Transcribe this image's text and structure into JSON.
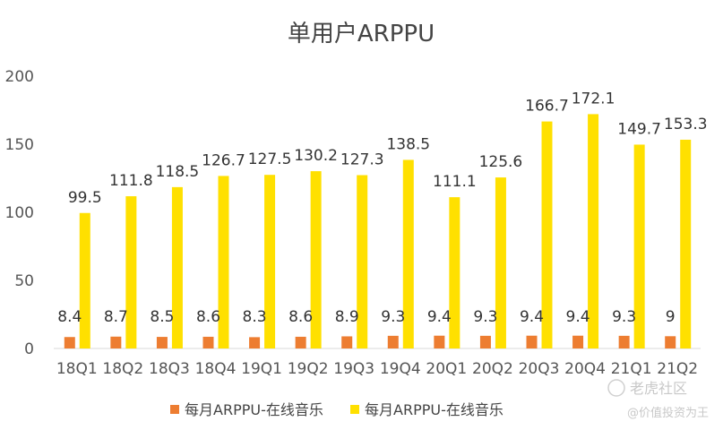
{
  "chart_data": {
    "type": "bar",
    "title": "单用户ARPPU",
    "categories": [
      "18Q1",
      "18Q2",
      "18Q3",
      "18Q4",
      "19Q1",
      "19Q2",
      "19Q3",
      "19Q4",
      "20Q1",
      "20Q2",
      "20Q3",
      "20Q4",
      "21Q1",
      "21Q2"
    ],
    "series": [
      {
        "name": "每月ARPPU-在线音乐",
        "color": "#ED7D31",
        "values": [
          8.4,
          8.7,
          8.5,
          8.6,
          8.3,
          8.6,
          8.9,
          9.3,
          9.4,
          9.3,
          9.4,
          9.4,
          9.3,
          9
        ]
      },
      {
        "name": "每月ARPPU-在线音乐",
        "color": "#FFE000",
        "values": [
          99.5,
          111.8,
          118.5,
          126.7,
          127.5,
          130.2,
          127.3,
          138.5,
          111.1,
          125.6,
          166.7,
          172.1,
          149.7,
          153.3
        ]
      }
    ],
    "ylim": [
      0,
      200
    ],
    "yticks": [
      0,
      50,
      100,
      150,
      200
    ],
    "grid": false,
    "legend": "bottom",
    "xlabel": "",
    "ylabel": ""
  },
  "watermark": {
    "brand": "老虎社区",
    "author": "@价值投资为王"
  }
}
